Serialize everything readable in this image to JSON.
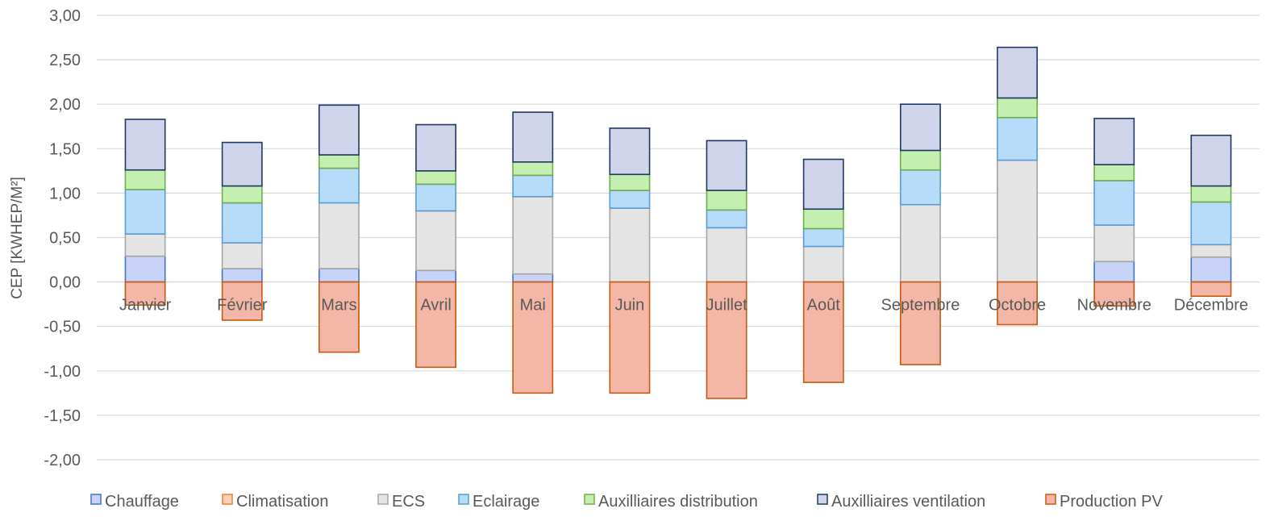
{
  "chart_data": {
    "type": "bar",
    "stacked": true,
    "title": "",
    "xlabel": "",
    "ylabel": "CEP [KWHEP/M²]",
    "ylim": [
      -2.0,
      3.0
    ],
    "yticks": [
      "3,00",
      "2,50",
      "2,00",
      "1,50",
      "1,00",
      "0,50",
      "0,00",
      "-0,50",
      "-1,00",
      "-1,50",
      "-2,00"
    ],
    "grid": true,
    "legend_position": "bottom",
    "categories": [
      "Janvier",
      "Février",
      "Mars",
      "Avril",
      "Mai",
      "Juin",
      "Juillet",
      "Août",
      "Septembre",
      "Octobre",
      "Novembre",
      "Décembre"
    ],
    "series": [
      {
        "name": "Chauffage",
        "color": "#c9d3f7",
        "border": "#4472c4",
        "values": [
          0.29,
          0.15,
          0.15,
          0.13,
          0.09,
          0,
          0,
          0,
          0,
          0,
          0.23,
          0.28
        ]
      },
      {
        "name": "Climatisation",
        "color": "#fbd1b4",
        "border": "#ed7d31",
        "values": [
          0,
          0,
          0,
          0,
          0,
          0,
          0,
          0,
          0,
          0,
          0,
          0
        ]
      },
      {
        "name": "ECS",
        "color": "#e4e4e4",
        "border": "#a5a5a5",
        "values": [
          0.25,
          0.29,
          0.74,
          0.67,
          0.87,
          0.83,
          0.61,
          0.4,
          0.87,
          1.37,
          0.41,
          0.14
        ]
      },
      {
        "name": "Eclairage",
        "color": "#b6dcfa",
        "border": "#5b9bd5",
        "values": [
          0.5,
          0.45,
          0.39,
          0.3,
          0.24,
          0.2,
          0.2,
          0.2,
          0.39,
          0.48,
          0.5,
          0.48
        ]
      },
      {
        "name": "Auxilliaires distribution",
        "color": "#c5efb0",
        "border": "#70ad47",
        "values": [
          0.22,
          0.19,
          0.15,
          0.15,
          0.15,
          0.18,
          0.22,
          0.22,
          0.22,
          0.22,
          0.18,
          0.18
        ]
      },
      {
        "name": "Auxilliaires ventilation",
        "color": "#cfd4ea",
        "border": "#203864",
        "values": [
          0.57,
          0.49,
          0.56,
          0.52,
          0.56,
          0.52,
          0.56,
          0.56,
          0.52,
          0.57,
          0.52,
          0.57
        ]
      },
      {
        "name": "Production PV",
        "color": "#f4b6a6",
        "border": "#c55a11",
        "values": [
          -0.26,
          -0.43,
          -0.79,
          -0.96,
          -1.25,
          -1.25,
          -1.31,
          -1.13,
          -0.93,
          -0.48,
          -0.27,
          -0.16
        ]
      }
    ]
  }
}
